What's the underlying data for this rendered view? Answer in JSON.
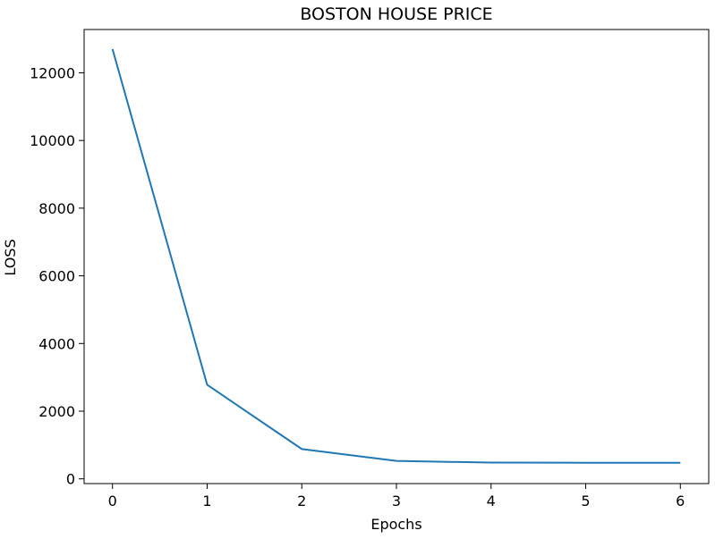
{
  "chart_data": {
    "type": "line",
    "title": "BOSTON HOUSE PRICE",
    "xlabel": "Epochs",
    "ylabel": "LOSS",
    "x": [
      0,
      1,
      2,
      3,
      4,
      5,
      6
    ],
    "series": [
      {
        "values": [
          12700,
          2780,
          880,
          530,
          480,
          475,
          475
        ],
        "color": "#1f77b4"
      }
    ],
    "xlim": [
      -0.3,
      6.3
    ],
    "ylim": [
      -140,
      13280
    ],
    "xticks": [
      0,
      1,
      2,
      3,
      4,
      5,
      6
    ],
    "yticks": [
      0,
      2000,
      4000,
      6000,
      8000,
      10000,
      12000
    ],
    "grid": false,
    "legend": "none"
  }
}
